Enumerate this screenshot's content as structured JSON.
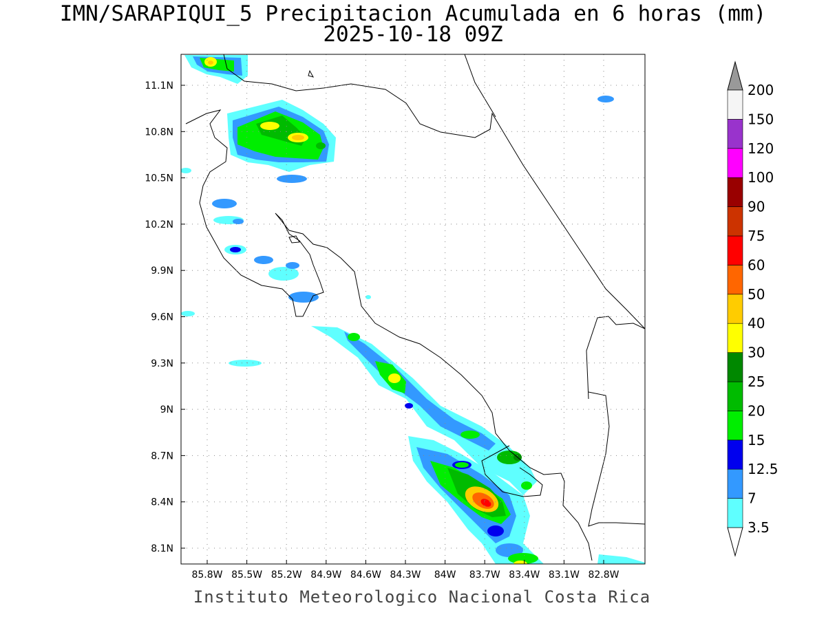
{
  "title_line1": "IMN/SARAPIQUI_5 Precipitacion Acumulada en 6 horas (mm)",
  "title_line2": "2025-10-18 09Z",
  "footer": "Instituto Meteorologico Nacional Costa Rica",
  "map": {
    "lon_labels": [
      "85.8W",
      "85.5W",
      "85.2W",
      "84.9W",
      "84.6W",
      "84.3W",
      "84W",
      "83.7W",
      "83.4W",
      "83.1W",
      "82.8W"
    ],
    "lat_labels": [
      "11.1N",
      "10.8N",
      "10.5N",
      "10.2N",
      "9.9N",
      "9.6N",
      "9.3N",
      "9N",
      "8.7N",
      "8.4N",
      "8.1N"
    ],
    "grid": true
  },
  "colorbar": {
    "labels": [
      "3.5",
      "7",
      "12.5",
      "15",
      "20",
      "25",
      "30",
      "40",
      "50",
      "60",
      "75",
      "90",
      "100",
      "120",
      "150",
      "200"
    ],
    "colors": [
      "#ffffff",
      "#5fffff",
      "#3399ff",
      "#0000ee",
      "#00ee00",
      "#00bb00",
      "#008800",
      "#ffff00",
      "#ffcc00",
      "#ff6600",
      "#ff0000",
      "#cc3300",
      "#990000",
      "#ff00ff",
      "#9933cc",
      "#f5f5f5",
      "#999999"
    ]
  }
}
